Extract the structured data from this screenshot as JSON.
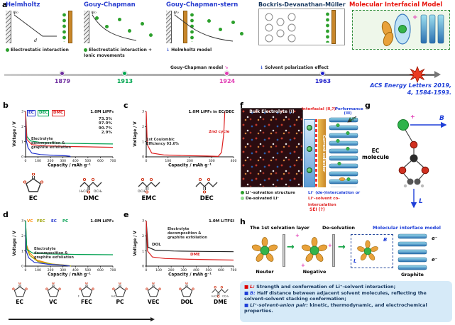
{
  "icons": {
    "plus": "+",
    "down_arrow": "↓",
    "down_right_arrow": "↘",
    "right_arrow": "→",
    "square_bullet": "■",
    "electron": "e⁻"
  },
  "panel_a": {
    "label": "a",
    "models": [
      {
        "title": "Helmholtz",
        "color": "#2a3fd0",
        "caption": "Electrostatic interaction",
        "psi": "ψ₀",
        "d_label": "d"
      },
      {
        "title": "Gouy-Chapman",
        "color": "#2a3fd0",
        "caption": "Electrostatic interaction + Ionic movements",
        "psi": "ψ₀"
      },
      {
        "title": "Gouy-Chapman-stern",
        "color": "#2a3fd0",
        "caption": "Helmholtz model",
        "caption2": "Gouy-Chapman model",
        "psi": "ψ₀"
      },
      {
        "title": "Bockris-Devanathan-Müller",
        "color": "#17375e",
        "caption": "Solvent polarization effect"
      },
      {
        "title": "Molecular Interfacial Model",
        "color": "#e8130c"
      }
    ],
    "years": [
      {
        "label": "1879",
        "color": "#7030a0"
      },
      {
        "label": "1913",
        "color": "#00a650"
      },
      {
        "label": "1924",
        "color": "#e23bb4"
      },
      {
        "label": "1963",
        "color": "#2222cc"
      }
    ],
    "citation_line1": "ACS Energy Letters 2019,",
    "citation_line2": "4, 1584-1593.",
    "citation_color": "#1f3fd8"
  },
  "chart_data": [
    {
      "id": "b",
      "type": "line",
      "title": "",
      "xlabel": "Capacity / mAh g⁻¹",
      "ylabel": "Voltage / V",
      "xlim": [
        0,
        700
      ],
      "ylim": [
        0,
        3
      ],
      "xticks": [
        0,
        100,
        200,
        300,
        400,
        500,
        600,
        700
      ],
      "yticks": [
        0,
        1,
        2,
        3
      ],
      "series": [
        {
          "name": "EC",
          "color": "#2233cc",
          "x": [
            0,
            5,
            20,
            50,
            120,
            220,
            320,
            355,
            360
          ],
          "y": [
            3,
            1.1,
            0.6,
            0.25,
            0.15,
            0.1,
            0.07,
            0.04,
            0
          ]
        },
        {
          "name": "DEC",
          "color": "#00a050",
          "x": [
            0,
            10,
            40,
            120,
            280,
            480,
            700
          ],
          "y": [
            3,
            1.35,
            1.05,
            0.95,
            0.9,
            0.87,
            0.85
          ]
        },
        {
          "name": "DMC",
          "color": "#dd2222",
          "x": [
            0,
            10,
            50,
            160,
            350,
            550,
            700
          ],
          "y": [
            3,
            1.15,
            0.8,
            0.72,
            0.68,
            0.65,
            0.63
          ]
        }
      ]
    },
    {
      "id": "c",
      "type": "line",
      "title": "",
      "xlabel": "Capacity / mAh g⁻¹",
      "ylabel": "Voltage / V",
      "xlim": [
        0,
        400
      ],
      "ylim": [
        0,
        3
      ],
      "xticks": [
        0,
        100,
        200,
        300,
        400
      ],
      "yticks": [
        0,
        1,
        2,
        3
      ],
      "series": [
        {
          "name": "2nd cycle",
          "color": "#dd2222",
          "x": [
            0,
            5,
            25,
            80,
            180,
            280,
            330,
            345,
            355,
            360
          ],
          "y": [
            3,
            0.8,
            0.25,
            0.12,
            0.08,
            0.05,
            0.03,
            0.3,
            1.5,
            3
          ]
        }
      ]
    },
    {
      "id": "d",
      "type": "line",
      "title": "",
      "xlabel": "Capacity / mAh g⁻¹",
      "ylabel": "Voltage / V",
      "xlim": [
        0,
        700
      ],
      "ylim": [
        0,
        3
      ],
      "xticks": [
        0,
        100,
        200,
        300,
        400,
        500,
        600,
        700
      ],
      "yticks": [
        0,
        1,
        2,
        3
      ],
      "series": [
        {
          "name": "VC",
          "color": "#ff8800",
          "x": [
            0,
            8,
            30,
            90,
            200,
            320,
            360
          ],
          "y": [
            3,
            1.4,
            0.9,
            0.4,
            0.15,
            0.06,
            0
          ]
        },
        {
          "name": "FEC",
          "color": "#9aa000",
          "x": [
            0,
            8,
            35,
            100,
            220,
            330,
            365
          ],
          "y": [
            3,
            1.2,
            0.7,
            0.3,
            0.12,
            0.05,
            0
          ]
        },
        {
          "name": "EC",
          "color": "#2233cc",
          "x": [
            0,
            5,
            25,
            70,
            180,
            300,
            355
          ],
          "y": [
            3,
            1,
            0.55,
            0.25,
            0.12,
            0.06,
            0
          ]
        },
        {
          "name": "PC",
          "color": "#00a050",
          "x": [
            0,
            10,
            60,
            200,
            420,
            700
          ],
          "y": [
            3,
            1.1,
            0.85,
            0.8,
            0.77,
            0.75
          ]
        }
      ]
    },
    {
      "id": "e",
      "type": "line",
      "title": "",
      "xlabel": "Capacity / mAh g⁻¹",
      "ylabel": "Voltage / V",
      "xlim": [
        0,
        700
      ],
      "ylim": [
        0,
        3
      ],
      "xticks": [
        0,
        100,
        200,
        300,
        400,
        500,
        600,
        700
      ],
      "yticks": [
        0,
        1,
        2,
        3
      ],
      "series": [
        {
          "name": "DOL",
          "color": "#222222",
          "x": [
            0,
            15,
            70,
            220,
            450,
            700
          ],
          "y": [
            3,
            1.25,
            1.05,
            1,
            0.97,
            0.95
          ]
        },
        {
          "name": "DME",
          "color": "#dd2222",
          "x": [
            0,
            10,
            50,
            150,
            350,
            550,
            700
          ],
          "y": [
            3,
            1,
            0.6,
            0.5,
            0.45,
            0.42,
            0.4
          ]
        }
      ]
    }
  ],
  "panel_b": {
    "label": "b",
    "legend": [
      {
        "text": "EC",
        "color": "#2233cc"
      },
      {
        "text": "DEC",
        "color": "#00a050"
      },
      {
        "text": "DMC",
        "color": "#dd2222"
      }
    ],
    "electrolyte": "1.0M LiPF₆",
    "ce_values": [
      "73.3%",
      "97.0%",
      "90.7%",
      "2.9%"
    ],
    "note": "Electrolyte decomposition & graphite exfoliation"
  },
  "panel_c": {
    "label": "c",
    "electrolyte": "1.0M LiPF₆ in EC/DEC",
    "cycle_label": "2nd cycle",
    "cycle_color": "#dd2222",
    "note": "1st Coulombic Efficiency 93.6%"
  },
  "panel_d": {
    "label": "d",
    "legend": [
      {
        "text": "VC",
        "color": "#ff8800"
      },
      {
        "text": "FEC",
        "color": "#9aa000"
      },
      {
        "text": "EC",
        "color": "#2233cc"
      },
      {
        "text": "PC",
        "color": "#00a050"
      }
    ],
    "electrolyte": "1.0M LiPF₆",
    "note": "Electrolyte decomposition & graphite exfoliation"
  },
  "panel_e": {
    "label": "e",
    "legend": [
      {
        "text": "DOL",
        "color": "#222222"
      },
      {
        "text": "DME",
        "color": "#dd2222"
      }
    ],
    "electrolyte": "1.0M LiTFSI",
    "note": "Electrolyte decomposition & graphite exfoliation"
  },
  "molecules_row1": [
    {
      "label": "EC",
      "shape": "ring"
    },
    {
      "label": "DMC",
      "shape": "chain",
      "groups": [
        "H₃CO",
        "OCH₃"
      ]
    },
    {
      "label": "EMC",
      "shape": "chain",
      "groups": [
        "OCH₃"
      ]
    },
    {
      "label": "DEC",
      "shape": "chain"
    }
  ],
  "molecules_row2": [
    {
      "label": "EC",
      "shape": "ring"
    },
    {
      "label": "VC",
      "shape": "ring"
    },
    {
      "label": "FEC",
      "shape": "ring",
      "groups": [
        "F"
      ]
    },
    {
      "label": "PC",
      "shape": "ring",
      "groups": [
        "H₃C"
      ]
    },
    {
      "label": "VEC",
      "shape": "ring"
    },
    {
      "label": "DOL",
      "shape": "ring"
    },
    {
      "label": "DME",
      "shape": "chain",
      "groups": [
        "H₃CO",
        "OCH₃"
      ]
    }
  ],
  "panel_f": {
    "label": "f",
    "bulk_title": "Bulk Electrolyte (I)",
    "interfacial_title": "Interfacial (II,?)",
    "interfacial_color": "#e82222",
    "performance_title": "Performance (III)",
    "performance_color": "#1f3fd8",
    "current_collector": "Current collector",
    "li_label": "Li⁺",
    "cap_solvation": "Li⁺-solvation structure",
    "cap_desolvated": "De-solvated Li⁺",
    "cap_intercalation": "Li⁺ (de-)intercalation or",
    "cap_intercalation_color": "#1f3fd8",
    "cap_cointercalation": "Li⁺-solvent co-intercalation",
    "cap_cointercalation_color": "#dd2222",
    "sei_label": "SEI (?)",
    "sei_color": "#e82222"
  },
  "panel_g": {
    "label": "g",
    "molecule_label": "EC molecule",
    "b_label": "B",
    "l_label": "L"
  },
  "panel_h": {
    "label": "h",
    "stage1_title": "The 1st solvation layer",
    "stage2_title": "De-solvation",
    "stage3_title": "Molecular interface model",
    "stage3_color": "#1f3fd8",
    "neuter": "Neuter",
    "negative": "Negative",
    "graphite": "Graphite",
    "l_label": "L",
    "b_label": "B"
  },
  "legend_box": {
    "bg": "#d6eaf8",
    "items": [
      {
        "bullet_color": "#dd0000",
        "prefix": "L:",
        "prefix_color": "#dd0000",
        "text": "Strength and conformation of Li⁺-solvent interaction;"
      },
      {
        "bullet_color": "#1f3fd8",
        "prefix": "B:",
        "prefix_color": "#1f3fd8",
        "text": "Half distance between adjacent solvent molecules, reflecting the solvent-solvent stacking conformation;"
      },
      {
        "bullet_color": "#1f3fd8",
        "prefix": "Li⁺-solvent-anion pair:",
        "prefix_color": "#17375e",
        "text": "kinetic, thermodynamic, and electrochemical properties."
      }
    ]
  }
}
